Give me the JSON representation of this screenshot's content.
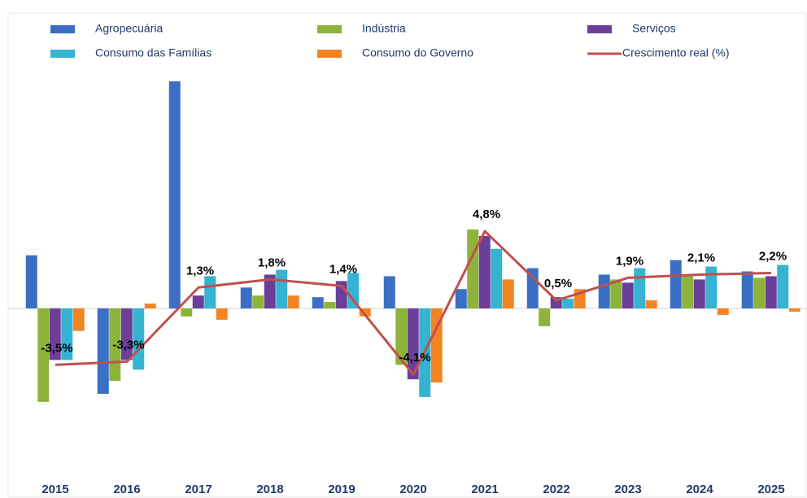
{
  "chart_data": {
    "type": "bar",
    "categories": [
      "2015",
      "2016",
      "2017",
      "2018",
      "2019",
      "2020",
      "2021",
      "2022",
      "2023",
      "2024",
      "2025"
    ],
    "ylim": [
      -10,
      14.5
    ],
    "series": [
      {
        "name": "Agropecuária",
        "color": "#3a6fc4",
        "values": [
          3.3,
          -5.3,
          14.1,
          1.3,
          0.7,
          2.0,
          1.2,
          2.5,
          2.1,
          3.0,
          2.3
        ]
      },
      {
        "name": "Indústria",
        "color": "#8db33a",
        "values": [
          -5.8,
          -4.5,
          -0.5,
          0.8,
          0.4,
          -3.5,
          4.9,
          -1.1,
          1.8,
          2.0,
          1.9
        ]
      },
      {
        "name": "Serviços",
        "color": "#6b3f99",
        "values": [
          -3.2,
          -3.2,
          0.8,
          2.1,
          1.7,
          -4.4,
          4.5,
          0.7,
          1.6,
          1.8,
          2.0
        ]
      },
      {
        "name": "Consumo das Famílias",
        "color": "#35b3d0",
        "values": [
          -3.2,
          -3.8,
          2.0,
          2.4,
          2.2,
          -5.5,
          3.7,
          0.6,
          2.5,
          2.6,
          2.7
        ]
      },
      {
        "name": "Consumo do Governo",
        "color": "#f28522",
        "values": [
          -1.4,
          0.3,
          -0.7,
          0.8,
          -0.5,
          -4.6,
          1.8,
          1.2,
          0.5,
          -0.4,
          -0.2
        ]
      },
      {
        "name": "Crescimento real (%)",
        "type": "line",
        "color": "#c0504d",
        "values": [
          -3.5,
          -3.3,
          1.3,
          1.8,
          1.4,
          -4.1,
          4.8,
          0.5,
          1.9,
          2.1,
          2.2
        ],
        "value_labels": [
          "-3,5%",
          "-3,3%",
          "1,3%",
          "1,8%",
          "1,4%",
          "-4,1%",
          "4,8%",
          "0,5%",
          "1,9%",
          "2,1%",
          "2,2%"
        ]
      }
    ]
  }
}
